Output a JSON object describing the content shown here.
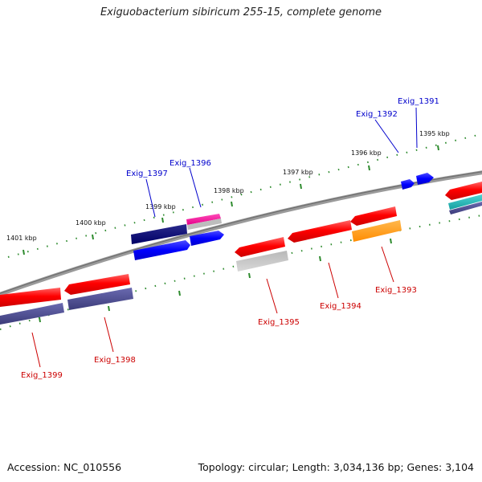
{
  "title": "Exiguobacterium sibiricum 255-15, complete genome",
  "footer": {
    "accession": "Accession: NC_010556",
    "summary": "Topology: circular; Length: 3,034,136 bp; Genes: 3,104"
  },
  "ticks": {
    "outer": [
      "1401 kbp",
      "1400 kbp",
      "1399 kbp",
      "1398 kbp",
      "1397 kbp",
      "1396 kbp",
      "1395 kbp"
    ]
  },
  "genes": {
    "forward": [
      "Exig_1397",
      "Exig_1396",
      "Exig_1392",
      "Exig_1391"
    ],
    "reverse": [
      "Exig_1399",
      "Exig_1398",
      "Exig_1395",
      "Exig_1394",
      "Exig_1393"
    ]
  },
  "colors": {
    "forward_label": "#0000cc",
    "reverse_label": "#cc0000",
    "backbone": "#888888",
    "tick": "#2e8b2e"
  }
}
